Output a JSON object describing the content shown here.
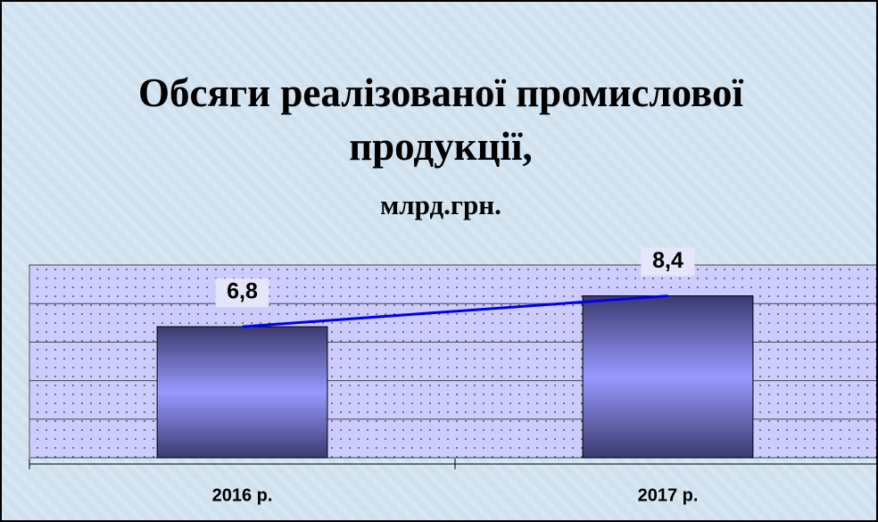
{
  "chart_data": {
    "type": "bar",
    "title": "Обсяги реалізованої промислової продукції,",
    "subtitle": "млрд.грн.",
    "categories": [
      "2016 р.",
      "2017 р."
    ],
    "values": [
      6.8,
      8.4
    ],
    "value_labels": [
      "6,8",
      "8,4"
    ],
    "color": "#9999ff",
    "line_color": "#0000ee",
    "ylim": [
      0,
      10
    ],
    "yticks": [
      0,
      2,
      4,
      6,
      8,
      10
    ],
    "grid": true
  }
}
